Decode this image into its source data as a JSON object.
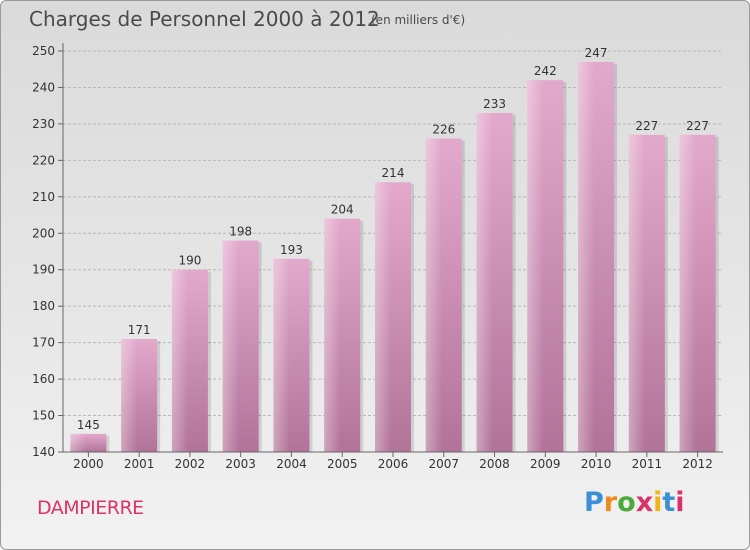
{
  "header": {
    "title": "Charges de Personnel 2000 à 2012",
    "subtitle": "(en milliers d'€)"
  },
  "commune": "DAMPIERRE",
  "logo": {
    "letters": [
      "P",
      "r",
      "o",
      "x",
      "i",
      "t",
      "i"
    ],
    "colors": [
      "#3a8fd6",
      "#f08a1c",
      "#4aab3a",
      "#d9346a",
      "#f2b21a",
      "#3a8fd6",
      "#d9346a"
    ]
  },
  "colors": {
    "bar_top": "#e3a9cc",
    "bar_bottom": "#b27399",
    "grid": "#b8b8b8",
    "axis": "#666666",
    "text": "#333333"
  },
  "chart_data": {
    "type": "bar",
    "categories": [
      "2000",
      "2001",
      "2002",
      "2003",
      "2004",
      "2005",
      "2006",
      "2007",
      "2008",
      "2009",
      "2010",
      "2011",
      "2012"
    ],
    "values": [
      145,
      171,
      190,
      198,
      193,
      204,
      214,
      226,
      233,
      242,
      247,
      227,
      227
    ],
    "title": "Charges de Personnel 2000 à 2012",
    "subtitle": "(en milliers d'€)",
    "ylim": [
      140,
      250
    ],
    "yticks": [
      140,
      150,
      160,
      170,
      180,
      190,
      200,
      210,
      220,
      230,
      240,
      250
    ],
    "grid": true
  }
}
